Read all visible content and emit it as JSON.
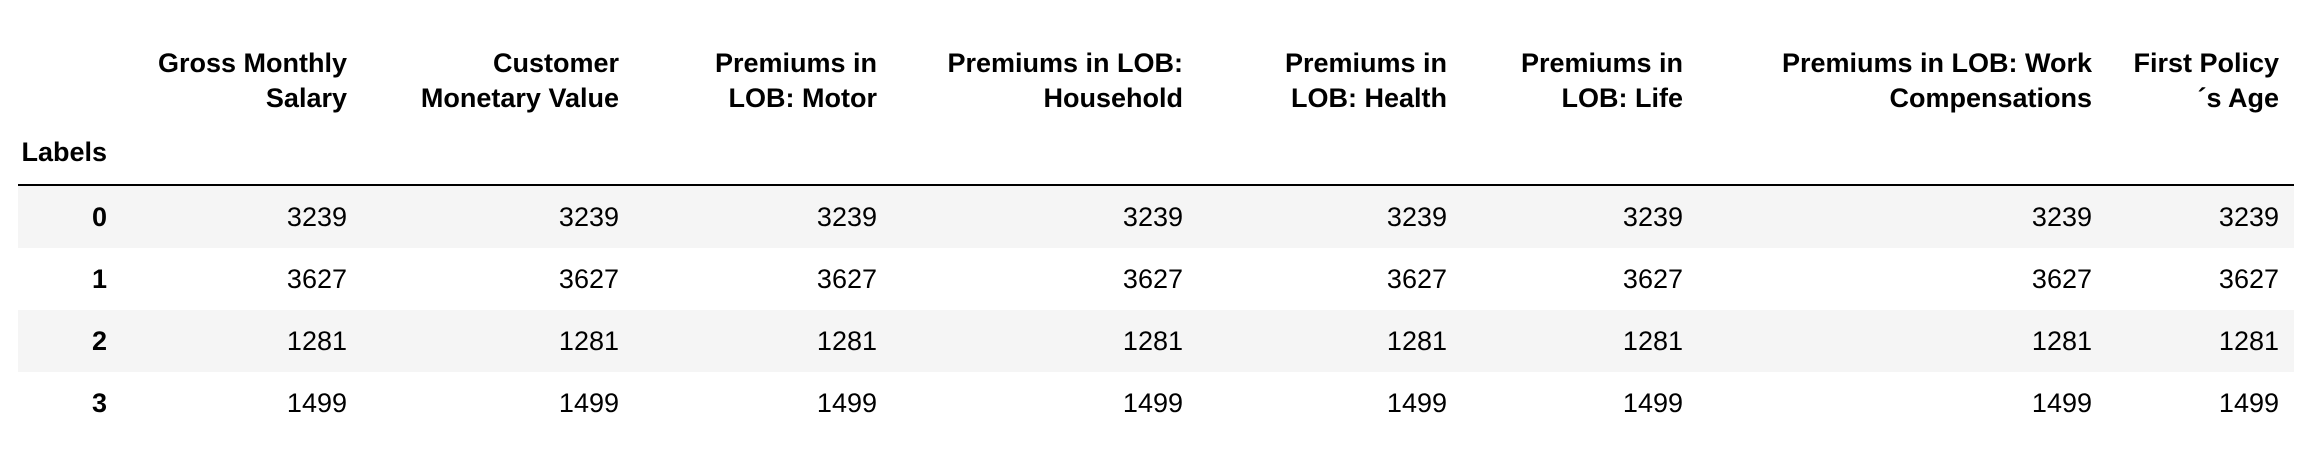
{
  "table": {
    "index_name": "Labels",
    "columns": [
      [
        "Gross Monthly",
        "Salary"
      ],
      [
        "Customer",
        "Monetary Value"
      ],
      [
        "Premiums in",
        "LOB: Motor"
      ],
      [
        "Premiums in LOB:",
        "Household"
      ],
      [
        "Premiums in",
        "LOB: Health"
      ],
      [
        "Premiums in",
        "LOB: Life"
      ],
      [
        "Premiums in LOB: Work",
        "Compensations"
      ],
      [
        "First Policy",
        "´s Age"
      ]
    ],
    "rows": [
      {
        "label": "0",
        "values": [
          "3239",
          "3239",
          "3239",
          "3239",
          "3239",
          "3239",
          "3239",
          "3239"
        ]
      },
      {
        "label": "1",
        "values": [
          "3627",
          "3627",
          "3627",
          "3627",
          "3627",
          "3627",
          "3627",
          "3627"
        ]
      },
      {
        "label": "2",
        "values": [
          "1281",
          "1281",
          "1281",
          "1281",
          "1281",
          "1281",
          "1281",
          "1281"
        ]
      },
      {
        "label": "3",
        "values": [
          "1499",
          "1499",
          "1499",
          "1499",
          "1499",
          "1499",
          "1499",
          "1499"
        ]
      }
    ]
  }
}
